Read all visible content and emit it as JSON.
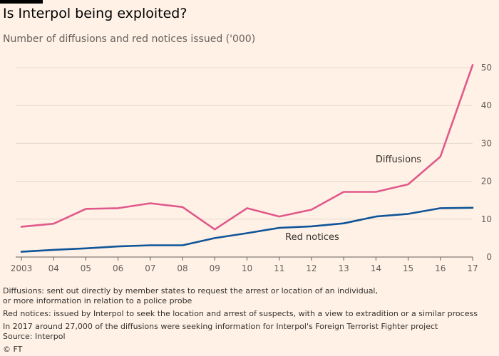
{
  "header": {
    "title": "Is Interpol being exploited?",
    "subtitle": "Number of diffusions and red notices issued ('000)"
  },
  "colors": {
    "background": "#fff1e5",
    "diffusions": "#e0598b",
    "red_notices": "#0f5499",
    "grid": "#e6d9ce",
    "axis": "#66605c"
  },
  "chart_data": {
    "type": "line",
    "title": "Is Interpol being exploited?",
    "subtitle": "Number of diffusions and red notices issued ('000)",
    "categories": [
      "2003",
      "04",
      "05",
      "06",
      "07",
      "08",
      "09",
      "10",
      "11",
      "12",
      "13",
      "14",
      "15",
      "16",
      "17"
    ],
    "series": [
      {
        "name": "Diffusions",
        "color": "#e0598b",
        "values": [
          8.0,
          8.8,
          12.7,
          12.9,
          14.2,
          13.2,
          7.3,
          12.9,
          10.7,
          12.5,
          17.2,
          17.2,
          19.2,
          26.5,
          50.7
        ]
      },
      {
        "name": "Red notices",
        "color": "#0f5499",
        "values": [
          1.4,
          1.9,
          2.3,
          2.8,
          3.1,
          3.1,
          5.0,
          6.3,
          7.7,
          8.1,
          8.9,
          10.7,
          11.4,
          12.9,
          13.0
        ]
      }
    ],
    "ylim": [
      0,
      50
    ],
    "yticks": [
      "0",
      "10",
      "20",
      "30",
      "40",
      "50"
    ],
    "y_axis_side": "right",
    "grid": true,
    "xlabel": "",
    "ylabel": ""
  },
  "notes": {
    "diffusions_line1": "Diffusions: sent out directly by member states to request the arrest or location of an individual,",
    "diffusions_line2": "or more information in relation to a police probe",
    "red_notices": "Red notices: issued by Interpol to seek the location and arrest of suspects, with a view to extradition or a similar process",
    "foreign_fighters": "In 2017 around 27,000 of the diffusions were seeking information for Interpol's Foreign Terrorist Fighter project",
    "source": "Source: Interpol"
  },
  "footer": {
    "copyright": "© FT"
  }
}
